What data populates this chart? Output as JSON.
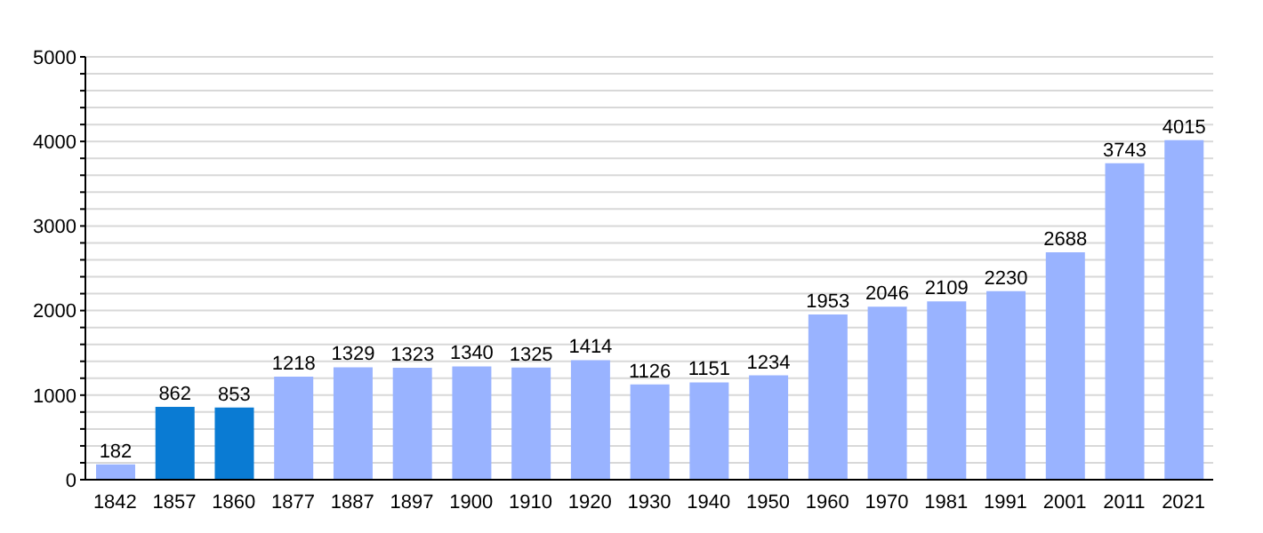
{
  "chart_data": {
    "type": "bar",
    "categories": [
      "1842",
      "1857",
      "1860",
      "1877",
      "1887",
      "1897",
      "1900",
      "1910",
      "1920",
      "1930",
      "1940",
      "1950",
      "1960",
      "1970",
      "1981",
      "1991",
      "2001",
      "2011",
      "2021"
    ],
    "values": [
      182,
      862,
      853,
      1218,
      1329,
      1323,
      1340,
      1325,
      1414,
      1126,
      1151,
      1234,
      1953,
      2046,
      2109,
      2230,
      2688,
      3743,
      4015
    ],
    "colors": [
      "#99b3ff",
      "#0a7bd3",
      "#0a7bd3",
      "#99b3ff",
      "#99b3ff",
      "#99b3ff",
      "#99b3ff",
      "#99b3ff",
      "#99b3ff",
      "#99b3ff",
      "#99b3ff",
      "#99b3ff",
      "#99b3ff",
      "#99b3ff",
      "#99b3ff",
      "#99b3ff",
      "#99b3ff",
      "#99b3ff",
      "#99b3ff"
    ],
    "ylim": [
      0,
      5000
    ],
    "yticks": [
      0,
      {
        "value": 200,
        "label": null
      },
      {
        "value": 400,
        "label": null
      },
      {
        "value": 600,
        "label": null
      },
      {
        "value": 800,
        "label": null
      },
      1000,
      {
        "value": 1200,
        "label": null
      },
      {
        "value": 1400,
        "label": null
      },
      {
        "value": 1600,
        "label": null
      },
      {
        "value": 1800,
        "label": null
      },
      2000,
      {
        "value": 2200,
        "label": null
      },
      {
        "value": 2400,
        "label": null
      },
      {
        "value": 2600,
        "label": null
      },
      {
        "value": 2800,
        "label": null
      },
      3000,
      {
        "value": 3200,
        "label": null
      },
      {
        "value": 3400,
        "label": null
      },
      {
        "value": 3600,
        "label": null
      },
      {
        "value": 3800,
        "label": null
      },
      4000,
      {
        "value": 4200,
        "label": null
      },
      {
        "value": 4400,
        "label": null
      },
      {
        "value": 4600,
        "label": null
      },
      {
        "value": 4800,
        "label": null
      },
      5000
    ],
    "grid": "y",
    "data_labels": true,
    "legend": false
  }
}
